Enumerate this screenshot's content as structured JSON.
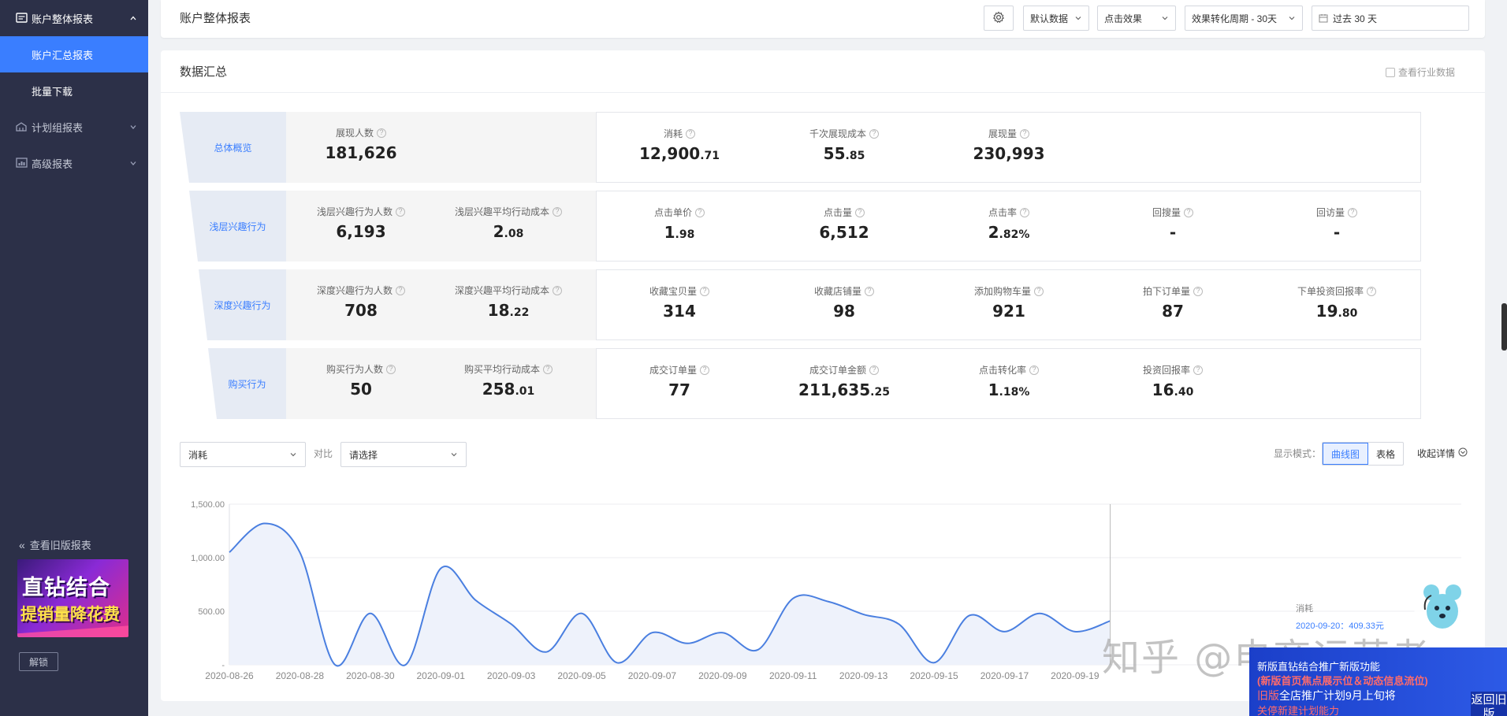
{
  "sidebar": {
    "groups": [
      {
        "label": "账户整体报表",
        "expanded": true,
        "icon": "report-icon"
      },
      {
        "label": "计划组报表",
        "expanded": false,
        "icon": "plan-group-icon"
      },
      {
        "label": "高级报表",
        "expanded": false,
        "icon": "advanced-report-icon"
      }
    ],
    "sub_items": [
      {
        "label": "账户汇总报表",
        "active": true
      },
      {
        "label": "批量下载",
        "active": false
      }
    ],
    "old_report_link": "查看旧版报表",
    "promo": {
      "line1": "直钻结合",
      "line2": "提销量降花费"
    },
    "unlock_label": "解锁"
  },
  "header": {
    "title": "账户整体报表",
    "data_select": "默认数据",
    "effect_select": "点击效果",
    "conversion_select": "效果转化周期 - 30天",
    "date_range": "过去 30 天"
  },
  "summary": {
    "title": "数据汇总",
    "industry_checkbox": "查看行业数据",
    "rows": [
      {
        "label": "总体概览",
        "left": [
          {
            "name": "展现人数",
            "int": "181,626",
            "dec": ""
          }
        ],
        "right": [
          {
            "name": "消耗",
            "int": "12,900",
            "dec": ".71"
          },
          {
            "name": "千次展现成本",
            "int": "55",
            "dec": ".85"
          },
          {
            "name": "展现量",
            "int": "230,993",
            "dec": ""
          }
        ]
      },
      {
        "label": "浅层兴趣行为",
        "left": [
          {
            "name": "浅层兴趣行为人数",
            "int": "6,193",
            "dec": ""
          },
          {
            "name": "浅层兴趣平均行动成本",
            "int": "2",
            "dec": ".08"
          }
        ],
        "right": [
          {
            "name": "点击单价",
            "int": "1",
            "dec": ".98"
          },
          {
            "name": "点击量",
            "int": "6,512",
            "dec": ""
          },
          {
            "name": "点击率",
            "int": "2",
            "dec": ".82%"
          },
          {
            "name": "回搜量",
            "int": "-",
            "dec": ""
          },
          {
            "name": "回访量",
            "int": "-",
            "dec": ""
          }
        ]
      },
      {
        "label": "深度兴趣行为",
        "left": [
          {
            "name": "深度兴趣行为人数",
            "int": "708",
            "dec": ""
          },
          {
            "name": "深度兴趣平均行动成本",
            "int": "18",
            "dec": ".22"
          }
        ],
        "right": [
          {
            "name": "收藏宝贝量",
            "int": "314",
            "dec": ""
          },
          {
            "name": "收藏店铺量",
            "int": "98",
            "dec": ""
          },
          {
            "name": "添加购物车量",
            "int": "921",
            "dec": ""
          },
          {
            "name": "拍下订单量",
            "int": "87",
            "dec": ""
          },
          {
            "name": "下单投资回报率",
            "int": "19",
            "dec": ".80"
          }
        ]
      },
      {
        "label": "购买行为",
        "left": [
          {
            "name": "购买行为人数",
            "int": "50",
            "dec": ""
          },
          {
            "name": "购买平均行动成本",
            "int": "258",
            "dec": ".01"
          }
        ],
        "right": [
          {
            "name": "成交订单量",
            "int": "77",
            "dec": ""
          },
          {
            "name": "成交订单金额",
            "int": "211,635",
            "dec": ".25"
          },
          {
            "name": "点击转化率",
            "int": "1",
            "dec": ".18%"
          },
          {
            "name": "投资回报率",
            "int": "16",
            "dec": ".40"
          }
        ]
      }
    ]
  },
  "chart_controls": {
    "metric_select": "消耗",
    "compare_label": "对比",
    "compare_select": "请选择",
    "display_mode_label": "显示模式：",
    "mode_curve": "曲线图",
    "mode_table": "表格",
    "collapse_label": "收起详情"
  },
  "chart_data": {
    "type": "area",
    "series": [
      {
        "name": "消耗",
        "values": [
          1050,
          1320,
          1050,
          0,
          480,
          0,
          900,
          600,
          380,
          120,
          480,
          20,
          300,
          200,
          300,
          140,
          620,
          590,
          470,
          380,
          20,
          460,
          310,
          480,
          310,
          409.33
        ]
      }
    ],
    "x": [
      "2020-08-26",
      "2020-08-27",
      "2020-08-28",
      "2020-08-29",
      "2020-08-30",
      "2020-08-31",
      "2020-09-01",
      "2020-09-02",
      "2020-09-03",
      "2020-09-04",
      "2020-09-05",
      "2020-09-06",
      "2020-09-07",
      "2020-09-08",
      "2020-09-09",
      "2020-09-10",
      "2020-09-11",
      "2020-09-12",
      "2020-09-13",
      "2020-09-14",
      "2020-09-15",
      "2020-09-16",
      "2020-09-17",
      "2020-09-18",
      "2020-09-19",
      "2020-09-20"
    ],
    "x_tick_labels": [
      "2020-08-26",
      "2020-08-28",
      "2020-08-30",
      "2020-09-01",
      "2020-09-03",
      "2020-09-05",
      "2020-09-07",
      "2020-09-09",
      "2020-09-11",
      "2020-09-13",
      "2020-09-15",
      "2020-09-17",
      "2020-09-19"
    ],
    "y_tick_labels": [
      "1,500.00",
      "1,000.00",
      "500.00",
      "-"
    ],
    "ylim": [
      0,
      1500
    ],
    "grid": true,
    "color": "#4a7fe0",
    "tooltip": {
      "series": "消耗",
      "text": "2020-09-20：409.33元"
    }
  },
  "overlays": {
    "watermark": "知乎 @电商运营者",
    "banner": {
      "line1": "新版直钻结合推广新版功能",
      "line2": "(新版首页焦点展示位＆动态信息流位)",
      "line3_red": "旧版",
      "line3_white": "全店推广计划9月上旬将",
      "line4": "关停新建计划能力",
      "back_label": "返回旧版"
    }
  }
}
